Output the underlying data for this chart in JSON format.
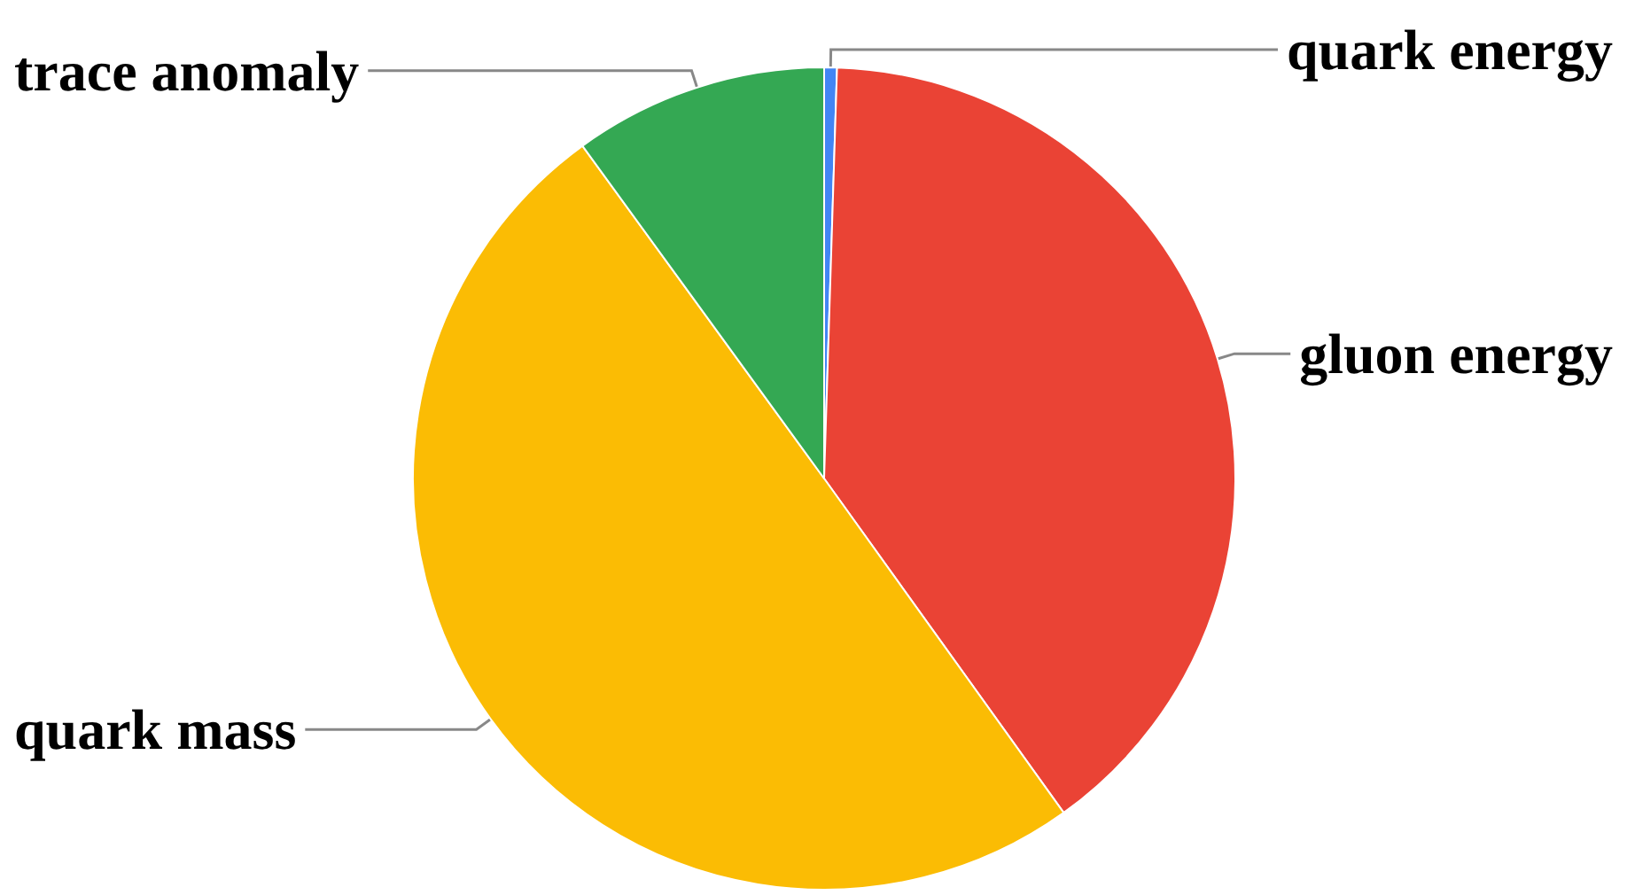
{
  "chart_data": {
    "type": "pie",
    "categories": [
      "quark energy",
      "gluon energy",
      "quark mass",
      "trace anomaly"
    ],
    "values": [
      0.5,
      39.6,
      49.9,
      10
    ],
    "colors": [
      "#4285f4",
      "#ea4335",
      "#fbbc04",
      "#34a853"
    ],
    "legend": false
  }
}
